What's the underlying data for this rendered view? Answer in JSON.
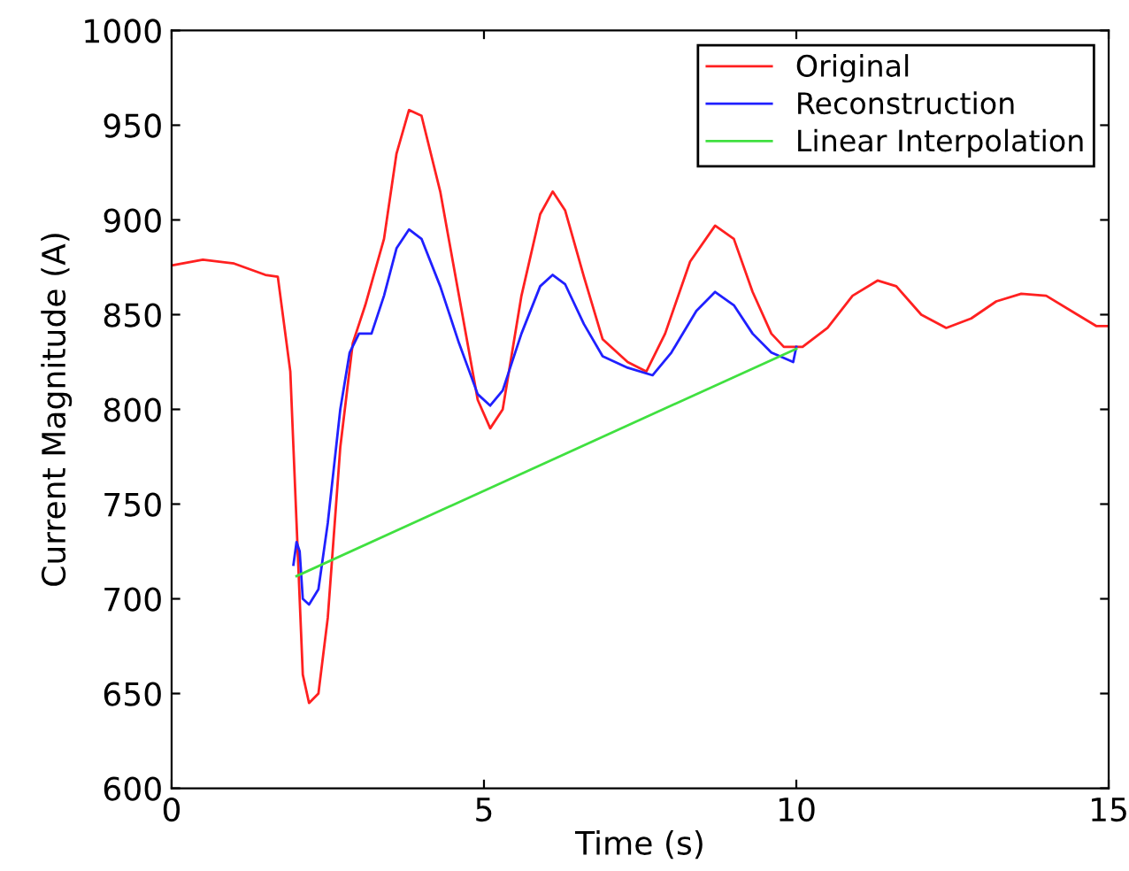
{
  "chart_data": {
    "type": "line",
    "xlabel": "Time (s)",
    "ylabel": "Current Magnitude (A)",
    "xlim": [
      0,
      15
    ],
    "ylim": [
      600,
      1000
    ],
    "xticks": [
      0,
      5,
      10,
      15
    ],
    "yticks": [
      600,
      650,
      700,
      750,
      800,
      850,
      900,
      950,
      1000
    ],
    "grid": false,
    "legend": "top right",
    "marker": "none",
    "line_style": "solid",
    "series": [
      {
        "name": "Original",
        "color": "#ff2020",
        "x": [
          0,
          0.5,
          1,
          1.5,
          1.7,
          1.9,
          2.0,
          2.1,
          2.2,
          2.35,
          2.5,
          2.7,
          2.9,
          3.1,
          3.4,
          3.6,
          3.8,
          4.0,
          4.3,
          4.6,
          4.9,
          5.1,
          5.3,
          5.6,
          5.9,
          6.1,
          6.3,
          6.6,
          6.9,
          7.3,
          7.6,
          7.9,
          8.3,
          8.7,
          9.0,
          9.3,
          9.6,
          9.8,
          10.1,
          10.5,
          10.9,
          11.3,
          11.6,
          12.0,
          12.4,
          12.8,
          13.2,
          13.6,
          14.0,
          14.5,
          14.8,
          15
        ],
        "values": [
          876,
          879,
          877,
          871,
          870,
          820,
          740,
          660,
          645,
          650,
          690,
          780,
          835,
          855,
          890,
          935,
          958,
          955,
          915,
          860,
          805,
          790,
          800,
          860,
          903,
          915,
          905,
          870,
          837,
          825,
          820,
          840,
          878,
          897,
          890,
          862,
          840,
          833,
          833,
          843,
          860,
          868,
          865,
          850,
          843,
          848,
          857,
          861,
          860,
          850,
          844,
          844
        ]
      },
      {
        "name": "Reconstruction",
        "color": "#2020ff",
        "x": [
          1.95,
          2.0,
          2.05,
          2.1,
          2.2,
          2.35,
          2.5,
          2.7,
          2.85,
          3.0,
          3.2,
          3.4,
          3.6,
          3.8,
          4.0,
          4.3,
          4.6,
          4.9,
          5.1,
          5.3,
          5.6,
          5.9,
          6.1,
          6.3,
          6.6,
          6.9,
          7.3,
          7.7,
          8.0,
          8.4,
          8.7,
          9.0,
          9.3,
          9.6,
          9.95,
          10.0
        ],
        "values": [
          718,
          730,
          725,
          700,
          697,
          705,
          740,
          800,
          830,
          840,
          840,
          860,
          885,
          895,
          890,
          865,
          835,
          808,
          802,
          810,
          840,
          865,
          871,
          866,
          845,
          828,
          822,
          818,
          830,
          852,
          862,
          855,
          840,
          830,
          825,
          833
        ]
      },
      {
        "name": "Linear Interpolation",
        "color": "#40e040",
        "x": [
          2.0,
          10.0
        ],
        "values": [
          712,
          832
        ]
      }
    ]
  }
}
